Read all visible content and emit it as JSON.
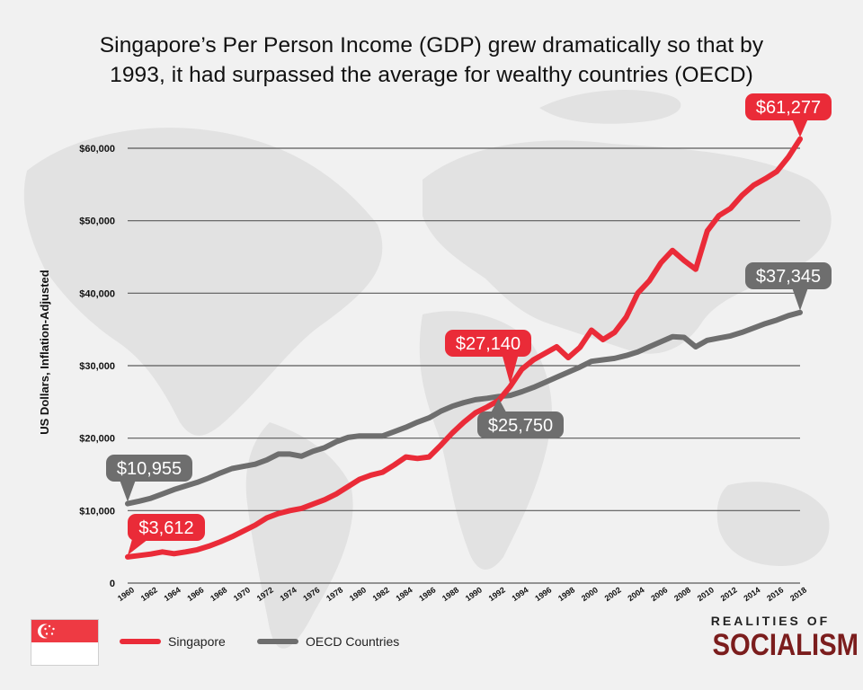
{
  "title_lines": [
    "Singapore’s Per Person Income (GDP) grew dramatically so that by",
    "1993, it had surpassed the average for wealthy countries (OECD)"
  ],
  "chart_data": {
    "type": "line",
    "title": "Singapore’s Per Person Income (GDP) grew dramatically so that by 1993, it had surpassed the average for wealthy countries (OECD)",
    "xlabel": "",
    "ylabel": "US Dollars, Inflation-Adjusted",
    "ylim": [
      0,
      60000
    ],
    "grid": true,
    "legend_position": "bottom",
    "y_ticks": [
      {
        "value": 0,
        "label": "0"
      },
      {
        "value": 10000,
        "label": "$10,000"
      },
      {
        "value": 20000,
        "label": "$20,000"
      },
      {
        "value": 30000,
        "label": "$30,000"
      },
      {
        "value": 40000,
        "label": "$40,000"
      },
      {
        "value": 50000,
        "label": "$50,000"
      },
      {
        "value": 60000,
        "label": "$60,000"
      }
    ],
    "x_tick_labels": [
      "1960",
      "1962",
      "1964",
      "1966",
      "1968",
      "1970",
      "1972",
      "1974",
      "1976",
      "1978",
      "1980",
      "1982",
      "1984",
      "1986",
      "1988",
      "1990",
      "1992",
      "1994",
      "1996",
      "1998",
      "2000",
      "2002",
      "2004",
      "2006",
      "2008",
      "2010",
      "2012",
      "2014",
      "2016",
      "2018"
    ],
    "x": [
      1960,
      1961,
      1962,
      1963,
      1964,
      1965,
      1966,
      1967,
      1968,
      1969,
      1970,
      1971,
      1972,
      1973,
      1974,
      1975,
      1976,
      1977,
      1978,
      1979,
      1980,
      1981,
      1982,
      1983,
      1984,
      1985,
      1986,
      1987,
      1988,
      1989,
      1990,
      1991,
      1992,
      1993,
      1994,
      1995,
      1996,
      1997,
      1998,
      1999,
      2000,
      2001,
      2002,
      2003,
      2004,
      2005,
      2006,
      2007,
      2008,
      2009,
      2010,
      2011,
      2012,
      2013,
      2014,
      2015,
      2016,
      2017,
      2018
    ],
    "series": [
      {
        "name": "Singapore",
        "color": "#ea2b38",
        "values": [
          3612,
          3800,
          4000,
          4300,
          4050,
          4300,
          4600,
          5100,
          5700,
          6400,
          7200,
          8000,
          9000,
          9600,
          10000,
          10300,
          10900,
          11500,
          12300,
          13300,
          14300,
          14900,
          15300,
          16300,
          17400,
          17200,
          17400,
          19000,
          20700,
          22200,
          23500,
          24300,
          25200,
          27140,
          29500,
          30800,
          31700,
          32600,
          31100,
          32500,
          34900,
          33600,
          34600,
          36700,
          40000,
          41700,
          44200,
          45900,
          44500,
          43300,
          48600,
          50700,
          51700,
          53500,
          54900,
          55800,
          56800,
          58800,
          61277
        ]
      },
      {
        "name": "OECD Countries",
        "color": "#6e6e6e",
        "values": [
          10955,
          11300,
          11700,
          12300,
          12900,
          13400,
          13900,
          14500,
          15200,
          15800,
          16100,
          16400,
          17000,
          17800,
          17800,
          17500,
          18200,
          18700,
          19500,
          20100,
          20300,
          20300,
          20300,
          20900,
          21500,
          22200,
          22800,
          23700,
          24400,
          24900,
          25300,
          25500,
          25750,
          25900,
          26400,
          27000,
          27700,
          28400,
          29100,
          29800,
          30600,
          30800,
          31000,
          31400,
          31900,
          32600,
          33300,
          34000,
          33900,
          32600,
          33500,
          33800,
          34100,
          34600,
          35200,
          35800,
          36300,
          36900,
          37345
        ]
      }
    ],
    "annotations": [
      {
        "text": "$61,277",
        "series": "Singapore",
        "x": 2018,
        "y": 61277
      },
      {
        "text": "$27,140",
        "series": "Singapore",
        "x": 1993,
        "y": 27140
      },
      {
        "text": "$3,612",
        "series": "Singapore",
        "x": 1960,
        "y": 3612
      },
      {
        "text": "$37,345",
        "series": "OECD Countries",
        "x": 2018,
        "y": 37345
      },
      {
        "text": "$25,750",
        "series": "OECD Countries",
        "x": 1992,
        "y": 25750
      },
      {
        "text": "$10,955",
        "series": "OECD Countries",
        "x": 1960,
        "y": 10955
      }
    ]
  },
  "legend": {
    "singapore_label": "Singapore",
    "oecd_label": "OECD Countries",
    "singapore_color": "#ea2b38",
    "oecd_color": "#6e6e6e"
  },
  "brand": {
    "top_text": "REALITIES OF",
    "bottom_text": "SOCIALISM"
  },
  "flag": {
    "name": "Singapore flag",
    "red": "#ee3a43",
    "white": "#ffffff"
  }
}
